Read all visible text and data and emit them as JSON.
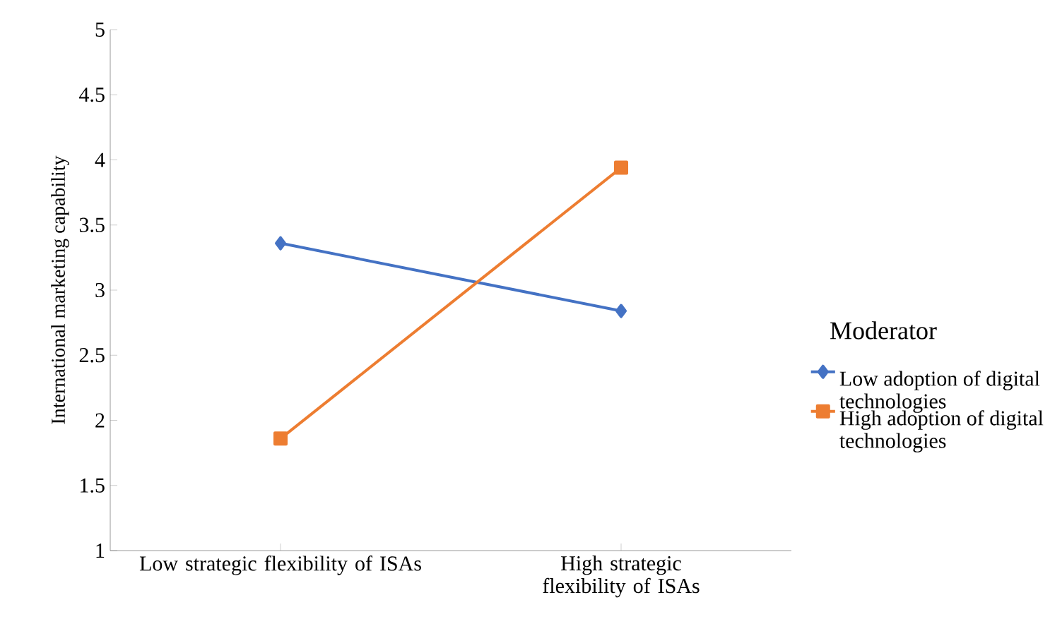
{
  "chart_data": {
    "type": "line",
    "ylabel": "International marketing capability",
    "legend_title": "Moderator",
    "legend": "right",
    "categories": [
      "Low strategic flexibility of ISAs",
      "High strategic flexibility of ISAs"
    ],
    "series": [
      {
        "name": "Low adoption of digital technologies",
        "color": "#4472c4",
        "marker": "diamond",
        "values": [
          3.36,
          2.84
        ]
      },
      {
        "name": "High adoption of digital technologies",
        "color": "#ed7d31",
        "marker": "square",
        "values": [
          1.86,
          3.94
        ]
      }
    ],
    "ylim": [
      1,
      5
    ],
    "yticks": [
      1,
      1.5,
      2,
      2.5,
      3,
      3.5,
      4,
      4.5,
      5
    ]
  }
}
